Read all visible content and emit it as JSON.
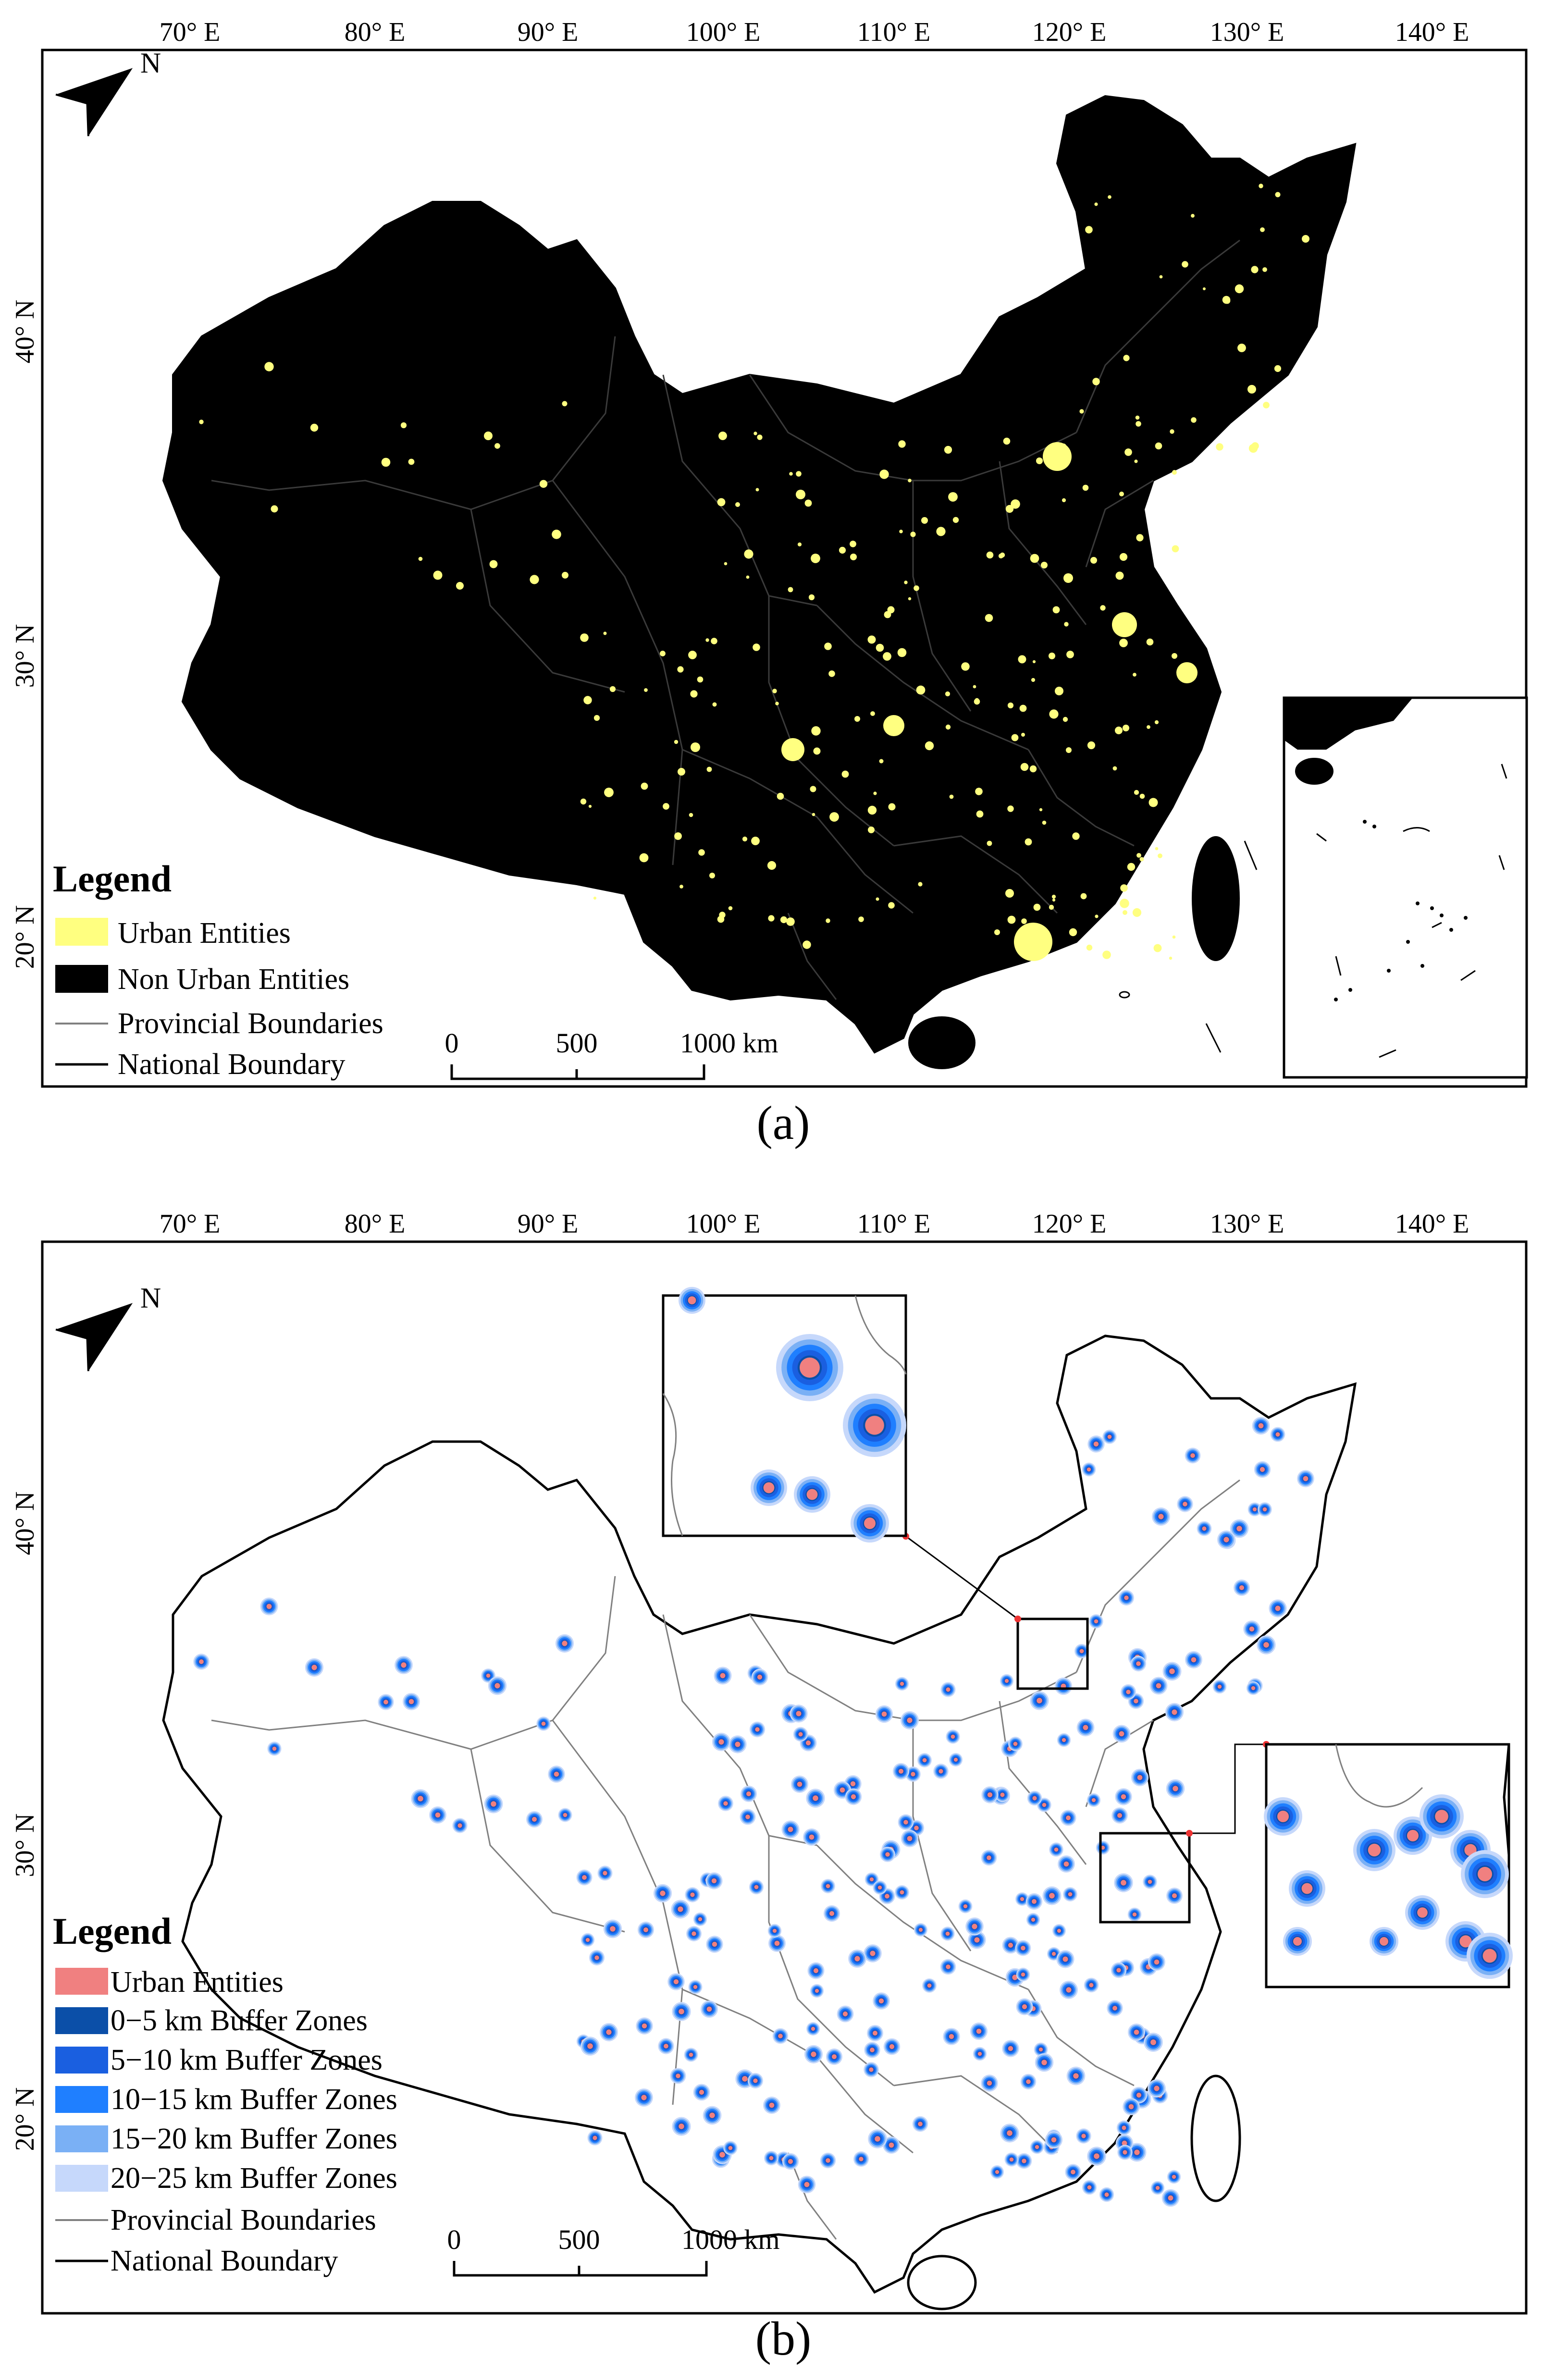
{
  "panels": [
    {
      "caption": "(a)",
      "lon_ticks": [
        "70° E",
        "80° E",
        "90° E",
        "100° E",
        "110° E",
        "120° E",
        "130° E",
        "140° E"
      ],
      "lat_ticks": [
        "40° N",
        "30° N",
        "20° N"
      ],
      "legend": {
        "title": "Legend",
        "items": [
          {
            "label": "Urban Entities",
            "color": "#ffff80",
            "kind": "patch"
          },
          {
            "label": "Non Urban Entities",
            "color": "#000000",
            "kind": "patch"
          },
          {
            "label": "Provincial Boundaries",
            "color": "#808080",
            "kind": "line"
          },
          {
            "label": "National Boundary",
            "color": "#000000",
            "kind": "line"
          }
        ]
      },
      "scale_bar": {
        "labels": [
          "0",
          "500",
          "1000 km"
        ]
      },
      "north_arrow": {
        "label": "N"
      }
    },
    {
      "caption": "(b)",
      "lon_ticks": [
        "70° E",
        "80° E",
        "90° E",
        "100° E",
        "110° E",
        "120° E",
        "130° E",
        "140° E"
      ],
      "lat_ticks": [
        "40° N",
        "30° N",
        "20° N"
      ],
      "legend": {
        "title": "Legend",
        "items": [
          {
            "label": "Urban Entities",
            "color": "#f08080",
            "kind": "patch"
          },
          {
            "label": "0−5 km Buffer Zones",
            "color": "#0b4fa8",
            "kind": "patch"
          },
          {
            "label": "5−10 km Buffer Zones",
            "color": "#1a5fe0",
            "kind": "patch"
          },
          {
            "label": "10−15 km Buffer Zones",
            "color": "#1f7fff",
            "kind": "patch"
          },
          {
            "label": "15−20 km Buffer Zones",
            "color": "#7ab0f5",
            "kind": "patch"
          },
          {
            "label": "20−25 km Buffer Zones",
            "color": "#c6d8fb",
            "kind": "patch"
          },
          {
            "label": "Provincial Boundaries",
            "color": "#808080",
            "kind": "line"
          },
          {
            "label": "National Boundary",
            "color": "#000000",
            "kind": "line"
          }
        ]
      },
      "scale_bar": {
        "labels": [
          "0",
          "500",
          "1000 km"
        ]
      },
      "north_arrow": {
        "label": "N"
      }
    }
  ]
}
